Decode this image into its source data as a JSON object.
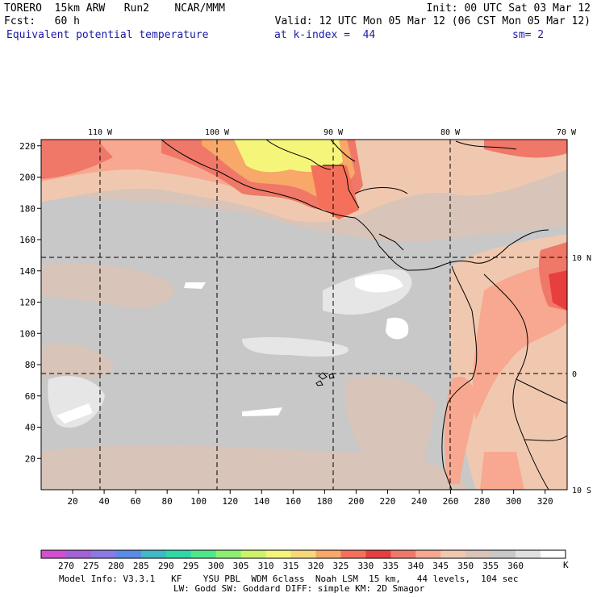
{
  "header": {
    "line1_left": "TORERO  15km ARW   Run2    NCAR/MMM",
    "line1_right": "Init: 00 UTC Sat 03 Mar 12",
    "line2_left": "Fcst:   60 h",
    "line2_right": "Valid: 12 UTC Mon 05 Mar 12 (06 CST Mon 05 Mar 12)",
    "field_name": "Equivalent potential temperature",
    "level": "at k-index =  44",
    "smoothing": "sm= 2"
  },
  "map": {
    "lon_labels": [
      "110 W",
      "100 W",
      "90 W",
      "80 W",
      "70 W"
    ],
    "lat_labels": [
      "10 N",
      "0",
      "10 S"
    ],
    "x_ticks": [
      "20",
      "40",
      "60",
      "80",
      "100",
      "120",
      "140",
      "160",
      "180",
      "200",
      "220",
      "240",
      "260",
      "280",
      "300",
      "320"
    ],
    "y_ticks": [
      "20",
      "40",
      "60",
      "80",
      "100",
      "120",
      "140",
      "160",
      "180",
      "200",
      "220"
    ]
  },
  "colorbar": {
    "colors": [
      "#d24fd2",
      "#a461d8",
      "#8a7ae6",
      "#5a8be8",
      "#3fb8c8",
      "#2fd8a8",
      "#4ee88a",
      "#8ef070",
      "#cdf36a",
      "#f5f57a",
      "#f8d87a",
      "#f8a868",
      "#f5705a",
      "#e83e3e",
      "#f07868",
      "#f8a890",
      "#f0c8b0",
      "#d8c4b8",
      "#c8c8c8",
      "#e0e0e0",
      "#ffffff"
    ],
    "labels": [
      "270",
      "275",
      "280",
      "285",
      "290",
      "295",
      "300",
      "305",
      "310",
      "315",
      "320",
      "325",
      "330",
      "335",
      "340",
      "345",
      "350",
      "355",
      "360"
    ],
    "unit": "K"
  },
  "footer": {
    "line1": "Model Info: V3.3.1   KF    YSU PBL  WDM 6class  Noah LSM  15 km,   44 levels,  104 sec",
    "line2": "LW: Godd SW: Goddard DIFF: simple KM: 2D Smagor"
  }
}
